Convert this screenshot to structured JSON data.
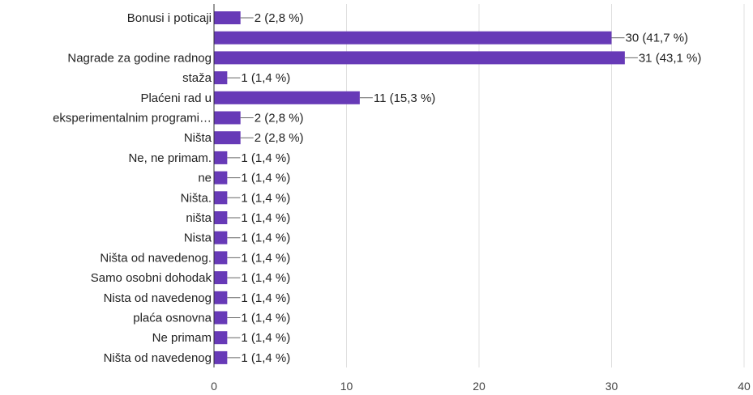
{
  "chart_data": {
    "type": "bar",
    "orientation": "horizontal",
    "title": "",
    "xlabel": "",
    "ylabel": "",
    "xlim": [
      0,
      40
    ],
    "xticks": [
      0,
      10,
      20,
      30,
      40
    ],
    "grid": true,
    "bar_color": "#673ab7",
    "bars": [
      {
        "category": [
          "Bonusi i poticaji"
        ],
        "value": 2,
        "label": "2 (2,8 %)"
      },
      {
        "category": [],
        "value": 30,
        "label": "30 (41,7 %)"
      },
      {
        "category": [
          "Nagrade za godine radnog"
        ],
        "value": 31,
        "label": "31 (43,1 %)"
      },
      {
        "category": [
          "staža"
        ],
        "value": 1,
        "label": "1 (1,4 %)"
      },
      {
        "category": [
          "Plaćeni rad u"
        ],
        "value": 11,
        "label": "11 (15,3 %)"
      },
      {
        "category": [
          "eksperimentalnim programi…"
        ],
        "value": 2,
        "label": "2 (2,8 %)"
      },
      {
        "category": [
          "Ništa"
        ],
        "value": 2,
        "label": "2 (2,8 %)"
      },
      {
        "category": [
          "Ne, ne primam."
        ],
        "value": 1,
        "label": "1 (1,4 %)"
      },
      {
        "category": [
          "ne"
        ],
        "value": 1,
        "label": "1 (1,4 %)"
      },
      {
        "category": [
          "Ništa."
        ],
        "value": 1,
        "label": "1 (1,4 %)"
      },
      {
        "category": [
          "ništa"
        ],
        "value": 1,
        "label": "1 (1,4 %)"
      },
      {
        "category": [
          "Nista"
        ],
        "value": 1,
        "label": "1 (1,4 %)"
      },
      {
        "category": [
          "Ništa od navedenog."
        ],
        "value": 1,
        "label": "1 (1,4 %)"
      },
      {
        "category": [
          "Samo osobni dohodak"
        ],
        "value": 1,
        "label": "1 (1,4 %)"
      },
      {
        "category": [
          "Nista od navedenog"
        ],
        "value": 1,
        "label": "1 (1,4 %)"
      },
      {
        "category": [
          "plaća osnovna"
        ],
        "value": 1,
        "label": "1 (1,4 %)"
      },
      {
        "category": [
          "Ne primam"
        ],
        "value": 1,
        "label": "1 (1,4 %)"
      },
      {
        "category": [
          "Ništa od navedenog"
        ],
        "value": 1,
        "label": "1 (1,4 %)"
      }
    ]
  }
}
